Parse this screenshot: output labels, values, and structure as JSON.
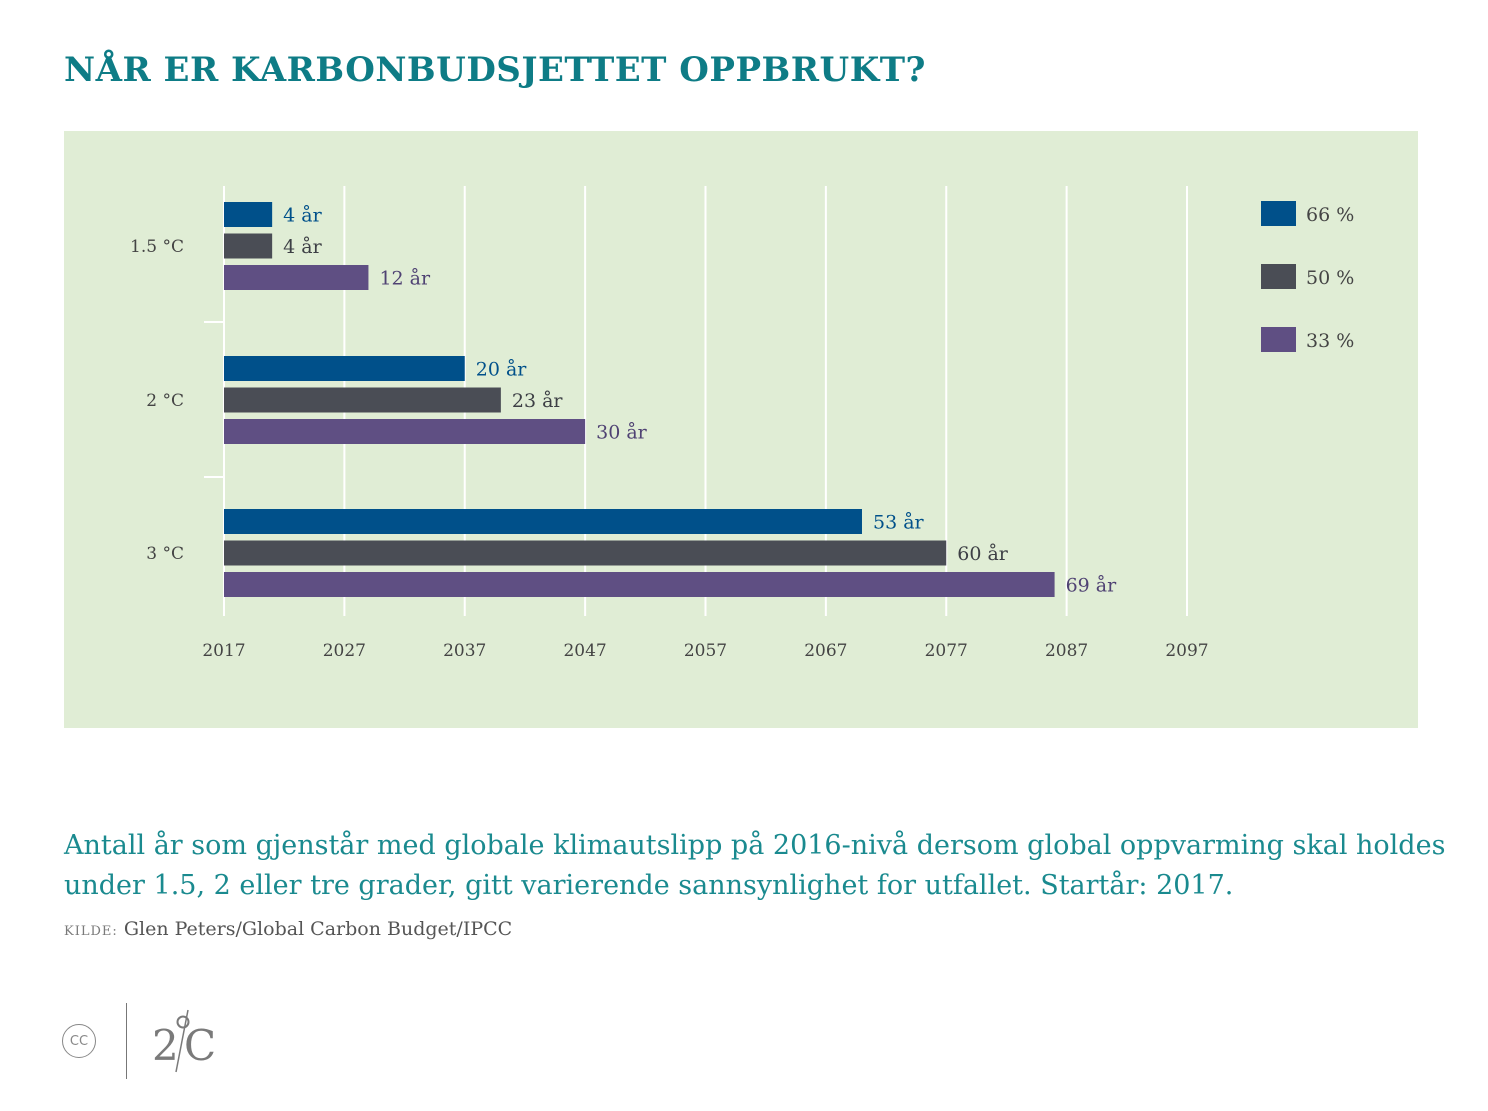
{
  "title": "NÅR ER KARBONBUDSJETTET OPPBRUKT?",
  "caption": "Antall år som gjenstår med globale klimautslipp på 2016-nivå dersom global oppvarming skal holdes under 1.5, 2 eller tre grader, gitt varierende sannsynlighet for utfallet. Startår: 2017.",
  "source_label": "KILDE:",
  "source_text": " Glen Peters/Global Carbon Budget/IPCC",
  "footer": {
    "cc": "CC",
    "logo": "2°C"
  },
  "colors": {
    "panel_bg": "#e0edd5",
    "title": "#0e7c86",
    "s66": "#00508a",
    "s50": "#4a4d55",
    "s33": "#5f4f83"
  },
  "chart_data": {
    "type": "bar",
    "orientation": "horizontal",
    "categories": [
      "1.5 °C",
      "2 °C",
      "3 °C"
    ],
    "x_ticks": [
      "2017",
      "2027",
      "2037",
      "2047",
      "2057",
      "2067",
      "2077",
      "2087",
      "2097"
    ],
    "xlim": [
      2017,
      2097
    ],
    "grid": true,
    "legend_position": "top-right",
    "series": [
      {
        "name": "66 %",
        "color": "#00508a",
        "label_color": "#00508a",
        "values": [
          4,
          20,
          53
        ],
        "labels": [
          "4 år",
          "20 år",
          "53 år"
        ]
      },
      {
        "name": "50 %",
        "color": "#4a4d55",
        "label_color": "#3d3f45",
        "values": [
          4,
          23,
          60
        ],
        "labels": [
          "4 år",
          "23 år",
          "60 år"
        ]
      },
      {
        "name": "33 %",
        "color": "#5f4f83",
        "label_color": "#4f4273",
        "values": [
          12,
          30,
          69
        ],
        "labels": [
          "12 år",
          "30 år",
          "69 år"
        ]
      }
    ]
  }
}
